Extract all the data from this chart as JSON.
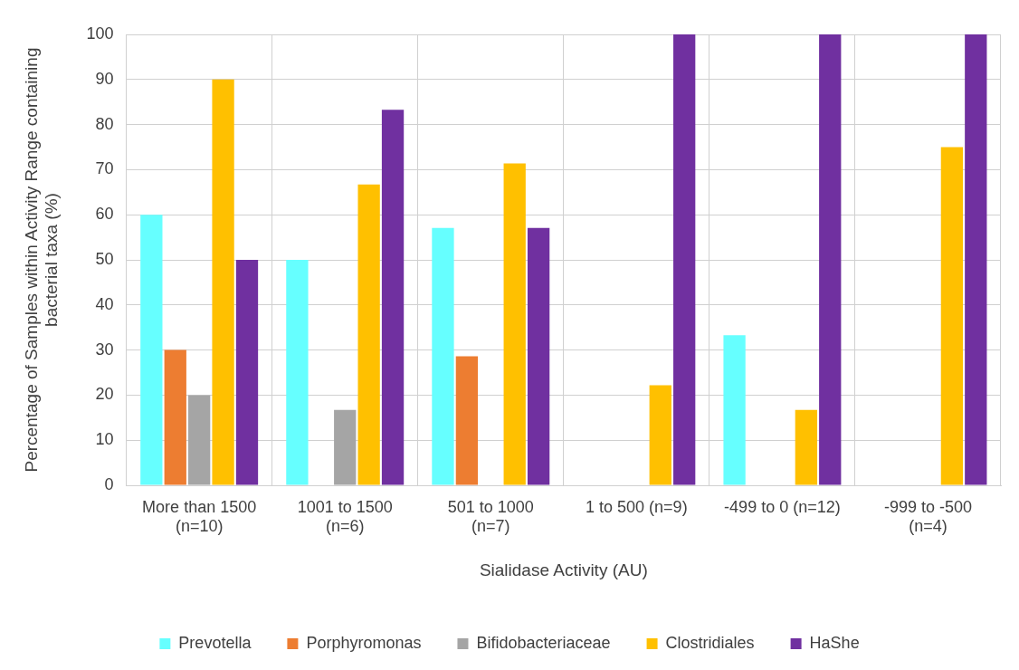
{
  "chart_data": {
    "type": "bar",
    "xlabel": "Sialidase Activity (AU)",
    "ylabel": "Percentage of Samples within Activity Range containing bacterial taxa (%)",
    "categories": [
      "More than 1500 (n=10)",
      "1001 to 1500 (n=6)",
      "501 to 1000 (n=7)",
      "1 to 500 (n=9)",
      "-499 to 0 (n=12)",
      "-999 to -500 (n=4)"
    ],
    "series": [
      {
        "name": "Prevotella",
        "color": "#66ffff",
        "values": [
          60,
          50,
          57.1,
          0,
          33.3,
          0
        ]
      },
      {
        "name": "Porphyromonas",
        "color": "#ed7d31",
        "values": [
          30,
          0,
          28.6,
          0,
          0,
          0
        ]
      },
      {
        "name": "Bifidobacteriaceae",
        "color": "#a5a5a5",
        "values": [
          20,
          16.7,
          0,
          0,
          0,
          0
        ]
      },
      {
        "name": "Clostridiales",
        "color": "#ffc000",
        "values": [
          90,
          66.7,
          71.4,
          22.2,
          16.7,
          75
        ]
      },
      {
        "name": "HaShe",
        "color": "#7030a0",
        "values": [
          50,
          83.3,
          57.1,
          100,
          100,
          100
        ]
      }
    ],
    "ylim": [
      0,
      100
    ],
    "yticks": [
      0,
      10,
      20,
      30,
      40,
      50,
      60,
      70,
      80,
      90,
      100
    ],
    "grid": true,
    "legend": "bottom"
  }
}
